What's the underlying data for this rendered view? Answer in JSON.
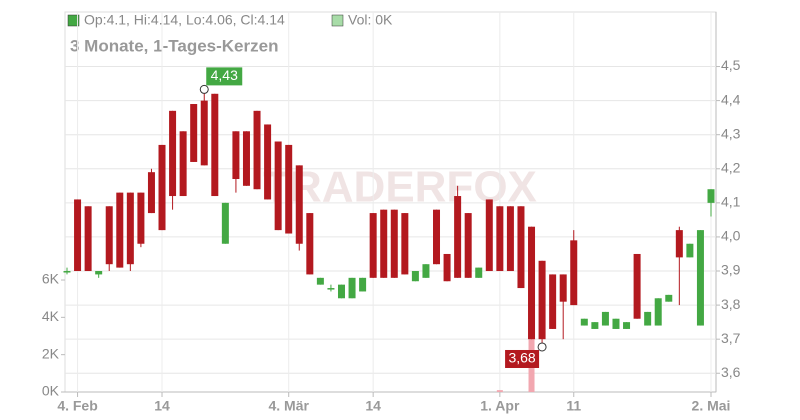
{
  "chart_data": {
    "type": "candlestick",
    "header": {
      "ohlc": "Op:4.1, Hi:4.14, Lo:4.06, Cl:4.14",
      "volume": "Vol: 0K"
    },
    "subtitle": "3 Monate, 1-Tages-Kerzen",
    "watermark": "TRADERFOX",
    "categories": [
      null,
      "4. Feb",
      null,
      null,
      null,
      null,
      null,
      null,
      null,
      "14",
      null,
      null,
      null,
      null,
      null,
      null,
      null,
      null,
      null,
      null,
      null,
      "4. Mär",
      null,
      null,
      null,
      null,
      null,
      null,
      null,
      "14",
      null,
      null,
      null,
      null,
      null,
      null,
      null,
      null,
      null,
      null,
      null,
      "1. Apr",
      null,
      null,
      null,
      null,
      null,
      null,
      "11",
      null,
      null,
      null,
      null,
      null,
      null,
      null,
      null,
      null,
      null,
      null,
      null,
      "2. Mai"
    ],
    "open": [
      3.9,
      4.11,
      4.09,
      3.89,
      4.09,
      4.13,
      4.13,
      4.13,
      4.19,
      4.27,
      4.37,
      4.31,
      4.39,
      4.4,
      4.42,
      3.98,
      4.31,
      4.31,
      4.37,
      4.33,
      4.28,
      4.27,
      4.21,
      4.07,
      3.86,
      3.85,
      3.82,
      3.82,
      3.84,
      4.07,
      4.08,
      4.08,
      4.07,
      3.87,
      3.88,
      4.08,
      3.95,
      4.12,
      4.07,
      3.88,
      4.11,
      4.09,
      4.09,
      4.09,
      4.03,
      3.93,
      3.89,
      3.89,
      3.99,
      3.74,
      3.73,
      3.74,
      3.73,
      3.73,
      3.95,
      3.74,
      3.74,
      3.81,
      4.02,
      3.94,
      3.74,
      4.1
    ],
    "high": [
      3.91,
      4.11,
      4.09,
      3.9,
      4.09,
      4.13,
      4.13,
      4.13,
      4.2,
      4.27,
      4.37,
      4.31,
      4.39,
      4.43,
      4.42,
      4.1,
      4.31,
      4.31,
      4.37,
      4.33,
      4.28,
      4.27,
      4.21,
      4.07,
      3.88,
      3.86,
      3.86,
      3.88,
      3.88,
      4.07,
      4.08,
      4.08,
      4.07,
      3.9,
      3.92,
      4.08,
      3.95,
      4.15,
      4.07,
      3.91,
      4.11,
      4.09,
      4.09,
      4.09,
      4.03,
      3.93,
      3.89,
      3.89,
      4.02,
      3.76,
      3.75,
      3.78,
      3.76,
      3.75,
      3.95,
      3.78,
      3.82,
      3.83,
      4.03,
      3.98,
      4.02,
      4.14
    ],
    "low": [
      3.89,
      3.9,
      3.9,
      3.88,
      3.9,
      3.91,
      3.9,
      3.97,
      4.07,
      4.02,
      4.08,
      4.12,
      4.22,
      4.21,
      4.12,
      3.98,
      4.13,
      4.15,
      4.14,
      4.11,
      4.02,
      4.01,
      3.96,
      3.89,
      3.86,
      3.84,
      3.82,
      3.82,
      3.84,
      3.88,
      3.88,
      3.88,
      3.89,
      3.87,
      3.88,
      3.92,
      3.87,
      3.88,
      3.88,
      3.88,
      3.9,
      3.9,
      3.9,
      3.85,
      3.7,
      3.68,
      3.73,
      3.7,
      3.8,
      3.74,
      3.73,
      3.74,
      3.73,
      3.73,
      3.76,
      3.74,
      3.74,
      3.81,
      3.8,
      3.94,
      3.74,
      4.06
    ],
    "close": [
      3.9,
      3.9,
      3.9,
      3.9,
      3.92,
      3.91,
      3.92,
      3.98,
      4.07,
      4.02,
      4.12,
      4.12,
      4.22,
      4.21,
      4.12,
      4.1,
      4.17,
      4.15,
      4.14,
      4.11,
      4.02,
      4.01,
      3.98,
      3.89,
      3.88,
      3.85,
      3.86,
      3.88,
      3.88,
      3.88,
      3.88,
      3.88,
      3.89,
      3.9,
      3.92,
      3.92,
      3.87,
      3.88,
      3.88,
      3.91,
      3.9,
      3.9,
      3.9,
      3.85,
      3.7,
      3.7,
      3.73,
      3.81,
      3.8,
      3.76,
      3.75,
      3.78,
      3.76,
      3.75,
      3.76,
      3.78,
      3.82,
      3.83,
      3.94,
      3.98,
      4.02,
      4.14
    ],
    "volume": [
      0,
      0,
      0,
      0,
      0,
      0,
      0,
      0,
      0,
      0,
      0,
      0,
      0,
      0,
      0,
      0,
      0,
      0,
      0,
      0,
      0,
      0,
      0,
      0,
      0,
      0,
      0,
      0,
      0,
      0,
      0,
      0,
      0,
      0,
      0,
      0,
      0,
      0,
      0,
      0,
      0,
      100,
      0,
      0,
      3950,
      0,
      0,
      0,
      0,
      0,
      0,
      0,
      0,
      0,
      0,
      0,
      0,
      0,
      0,
      0,
      0,
      0
    ],
    "annotations": {
      "max": "4,43",
      "min": "3,68"
    },
    "up_color": "#43a843",
    "down_color": "#b3191f",
    "volume_color": "#f2a7b0",
    "ylim": [
      3.545,
      4.66
    ],
    "yticks": [
      {
        "value": 3.6,
        "label": "3,6"
      },
      {
        "value": 3.7,
        "label": "3,7"
      },
      {
        "value": 3.8,
        "label": "3,8"
      },
      {
        "value": 3.9,
        "label": "3,9"
      },
      {
        "value": 4.0,
        "label": "4,0"
      },
      {
        "value": 4.1,
        "label": "4,1"
      },
      {
        "value": 4.2,
        "label": "4,2"
      },
      {
        "value": 4.3,
        "label": "4,3"
      },
      {
        "value": 4.4,
        "label": "4,4"
      },
      {
        "value": 4.5,
        "label": "4,5"
      }
    ],
    "y2lim": [
      0,
      20360
    ],
    "y2ticks": [
      {
        "value": 0,
        "label": "0K"
      },
      {
        "value": 2000,
        "label": "2K"
      },
      {
        "value": 4000,
        "label": "4K"
      },
      {
        "value": 6000,
        "label": "6K"
      }
    ],
    "grid": true
  }
}
